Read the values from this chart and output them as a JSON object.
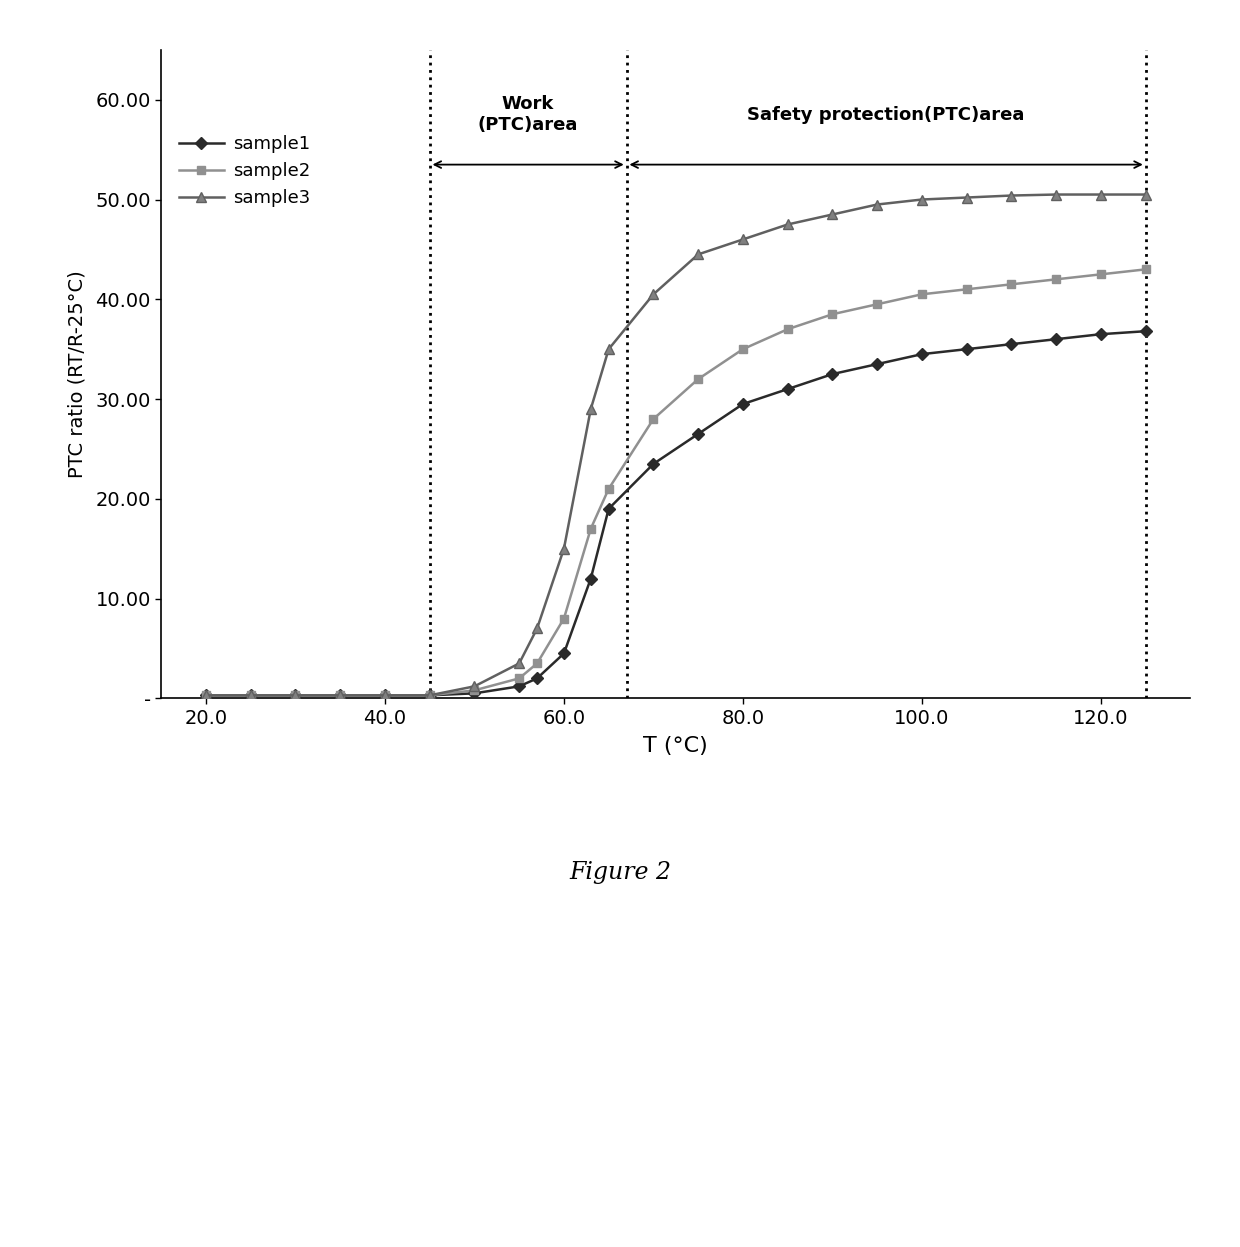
{
  "sample1_x": [
    20,
    25,
    30,
    35,
    40,
    45,
    50,
    55,
    57,
    60,
    63,
    65,
    70,
    75,
    80,
    85,
    90,
    95,
    100,
    105,
    110,
    115,
    120,
    125
  ],
  "sample1_y": [
    0.3,
    0.3,
    0.3,
    0.3,
    0.3,
    0.3,
    0.5,
    1.2,
    2.0,
    4.5,
    12.0,
    19.0,
    23.5,
    26.5,
    29.5,
    31.0,
    32.5,
    33.5,
    34.5,
    35.0,
    35.5,
    36.0,
    36.5,
    36.8
  ],
  "sample2_x": [
    20,
    25,
    30,
    35,
    40,
    45,
    50,
    55,
    57,
    60,
    63,
    65,
    70,
    75,
    80,
    85,
    90,
    95,
    100,
    105,
    110,
    115,
    120,
    125
  ],
  "sample2_y": [
    0.3,
    0.3,
    0.3,
    0.3,
    0.3,
    0.3,
    0.8,
    2.0,
    3.5,
    8.0,
    17.0,
    21.0,
    28.0,
    32.0,
    35.0,
    37.0,
    38.5,
    39.5,
    40.5,
    41.0,
    41.5,
    42.0,
    42.5,
    43.0
  ],
  "sample3_x": [
    20,
    25,
    30,
    35,
    40,
    45,
    50,
    55,
    57,
    60,
    63,
    65,
    70,
    75,
    80,
    85,
    90,
    95,
    100,
    105,
    110,
    115,
    120,
    125
  ],
  "sample3_y": [
    0.3,
    0.3,
    0.3,
    0.3,
    0.3,
    0.3,
    1.2,
    3.5,
    7.0,
    15.0,
    29.0,
    35.0,
    40.5,
    44.5,
    46.0,
    47.5,
    48.5,
    49.5,
    50.0,
    50.2,
    50.4,
    50.5,
    50.5,
    50.5
  ],
  "sample1_color": "#2a2a2a",
  "sample2_color": "#909090",
  "sample3_color": "#606060",
  "xlabel": "T (°C)",
  "ylabel": "PTC ratio (RT/R-25°C)",
  "ylim": [
    0,
    65
  ],
  "xlim": [
    15,
    130
  ],
  "yticks": [
    0,
    10.0,
    20.0,
    30.0,
    40.0,
    50.0,
    60.0
  ],
  "ytick_labels": [
    "-",
    "10.00",
    "20.00",
    "30.00",
    "40.00",
    "50.00",
    "60.00"
  ],
  "xticks": [
    20.0,
    40.0,
    60.0,
    80.0,
    100.0,
    120.0
  ],
  "vline1_x": 45,
  "vline2_x": 67,
  "vline3_x": 125,
  "work_label": "Work\n(PTC)area",
  "safety_label": "Safety protection(PTC)area",
  "figure_label": "Figure 2",
  "background_color": "#ffffff"
}
